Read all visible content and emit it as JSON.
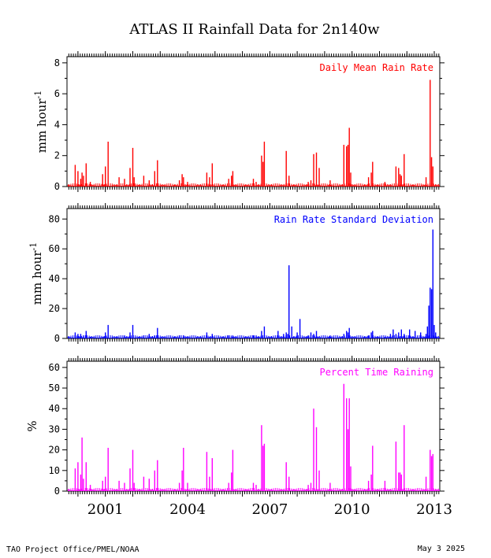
{
  "title": "ATLAS II Rainfall Data for 2n140w",
  "footer": {
    "left": "TAO Project Office/PMEL/NOAA",
    "right": "May  3 2025"
  },
  "x_ticks": [
    "2001",
    "2004",
    "2007",
    "2010",
    "2013"
  ],
  "chart_data": [
    {
      "type": "bar",
      "title": "Daily Mean Rain Rate",
      "ylabel": "mm hour",
      "ylabel_superscript": "-1",
      "ylim": [
        0,
        8.4
      ],
      "yticks": [
        "0",
        "2",
        "4",
        "6",
        "8"
      ],
      "color": "#ff0000",
      "xlim": [
        1999.6,
        2013.2
      ],
      "x_axis_label_positions": [
        2001,
        2004,
        2007,
        2010,
        2013
      ],
      "series": [
        {
          "x": [
            1999.9,
            2000.0,
            2000.1,
            2000.15,
            2000.2,
            2000.3,
            2000.45,
            2000.9,
            2001.0,
            2001.1,
            2001.5,
            2001.7,
            2001.9,
            2002.0,
            2002.05,
            2002.4,
            2002.6,
            2002.8,
            2002.9,
            2003.7,
            2003.8,
            2003.85,
            2004.0,
            2004.7,
            2004.8,
            2004.9,
            2005.5,
            2005.6,
            2005.65,
            2006.4,
            2006.5,
            2006.7,
            2006.75,
            2006.8,
            2007.6,
            2007.7,
            2008.4,
            2008.5,
            2008.6,
            2008.7,
            2008.8,
            2009.2,
            2009.7,
            2009.8,
            2009.85,
            2009.9,
            2009.95,
            2010.6,
            2010.7,
            2010.75,
            2011.2,
            2011.6,
            2011.7,
            2011.75,
            2011.8,
            2011.9,
            2012.7,
            2012.85,
            2012.9,
            2012.95
          ],
          "values": [
            1.4,
            1.0,
            0.5,
            0.9,
            0.7,
            1.5,
            0.3,
            0.8,
            1.3,
            2.9,
            0.6,
            0.5,
            1.2,
            2.5,
            0.6,
            0.7,
            0.4,
            1.0,
            1.7,
            0.4,
            0.8,
            0.6,
            0.3,
            0.9,
            0.6,
            1.5,
            0.5,
            0.7,
            1.0,
            0.5,
            0.3,
            2.0,
            1.6,
            2.9,
            2.3,
            0.7,
            0.3,
            0.4,
            2.1,
            2.2,
            1.2,
            0.4,
            2.7,
            2.6,
            2.7,
            3.8,
            0.9,
            0.6,
            0.9,
            1.6,
            0.3,
            1.3,
            1.2,
            0.8,
            0.7,
            2.1,
            0.6,
            6.9,
            1.9,
            1.3
          ]
        }
      ]
    },
    {
      "type": "bar",
      "title": "Rain Rate Standard Deviation",
      "ylabel": "mm hour",
      "ylabel_superscript": "-1",
      "ylim": [
        0,
        87
      ],
      "yticks": [
        "0",
        "20",
        "40",
        "60",
        "80"
      ],
      "color": "#0000ff",
      "xlim": [
        1999.6,
        2013.2
      ],
      "series": [
        {
          "x": [
            1999.9,
            2000.0,
            2000.1,
            2000.2,
            2000.3,
            2000.45,
            2001.0,
            2001.1,
            2001.7,
            2001.9,
            2002.0,
            2002.4,
            2002.6,
            2002.8,
            2002.9,
            2003.7,
            2003.85,
            2004.7,
            2004.9,
            2005.5,
            2005.65,
            2006.4,
            2006.5,
            2006.7,
            2006.8,
            2007.3,
            2007.5,
            2007.6,
            2007.65,
            2007.7,
            2007.8,
            2008.0,
            2008.1,
            2008.4,
            2008.5,
            2008.6,
            2008.7,
            2009.2,
            2009.7,
            2009.8,
            2009.85,
            2009.9,
            2010.6,
            2010.7,
            2010.75,
            2011.2,
            2011.4,
            2011.5,
            2011.6,
            2011.7,
            2011.8,
            2011.9,
            2012.1,
            2012.3,
            2012.5,
            2012.7,
            2012.75,
            2012.8,
            2012.85,
            2012.9,
            2012.95,
            2013.0,
            2013.05
          ],
          "values": [
            4,
            3,
            3,
            2,
            5,
            1,
            4,
            9,
            2,
            4,
            9,
            2,
            3,
            2,
            7,
            2,
            2,
            4,
            3,
            2,
            2,
            2,
            2,
            5,
            8,
            5,
            3,
            4,
            3,
            49,
            8,
            4,
            13,
            2,
            4,
            3,
            5,
            2,
            3,
            5,
            4,
            7,
            2,
            4,
            5,
            1,
            3,
            6,
            3,
            4,
            6,
            3,
            6,
            5,
            4,
            3,
            8,
            22,
            34,
            33,
            73,
            9,
            4
          ]
        }
      ]
    },
    {
      "type": "bar",
      "title": "Percent Time Raining",
      "ylabel": "%",
      "ylim": [
        0,
        63
      ],
      "yticks": [
        "0",
        "10",
        "20",
        "30",
        "40",
        "50",
        "60"
      ],
      "color": "#ff00ff",
      "xlim": [
        1999.6,
        2013.2
      ],
      "series": [
        {
          "x": [
            1999.9,
            2000.0,
            2000.1,
            2000.15,
            2000.2,
            2000.3,
            2000.45,
            2000.9,
            2001.0,
            2001.1,
            2001.5,
            2001.7,
            2001.9,
            2002.0,
            2002.05,
            2002.4,
            2002.6,
            2002.8,
            2002.9,
            2003.7,
            2003.8,
            2003.85,
            2004.0,
            2004.7,
            2004.8,
            2004.9,
            2005.5,
            2005.6,
            2005.65,
            2006.4,
            2006.5,
            2006.7,
            2006.75,
            2006.8,
            2007.6,
            2007.7,
            2008.4,
            2008.5,
            2008.6,
            2008.7,
            2008.8,
            2009.2,
            2009.7,
            2009.8,
            2009.85,
            2009.9,
            2009.95,
            2010.6,
            2010.7,
            2010.75,
            2011.2,
            2011.6,
            2011.7,
            2011.75,
            2011.8,
            2011.9,
            2012.7,
            2012.85,
            2012.9,
            2012.95
          ],
          "values": [
            11,
            14,
            8,
            26,
            6,
            14,
            3,
            5,
            7,
            21,
            5,
            4,
            11,
            20,
            4,
            7,
            6,
            10,
            15,
            4,
            10,
            21,
            4,
            19,
            7,
            16,
            4,
            9,
            20,
            4,
            3,
            32,
            22,
            23,
            14,
            7,
            3,
            4,
            40,
            31,
            10,
            4,
            52,
            45,
            30,
            45,
            12,
            5,
            8,
            22,
            5,
            24,
            9,
            9,
            8,
            32,
            7,
            20,
            17,
            18
          ]
        }
      ]
    }
  ]
}
